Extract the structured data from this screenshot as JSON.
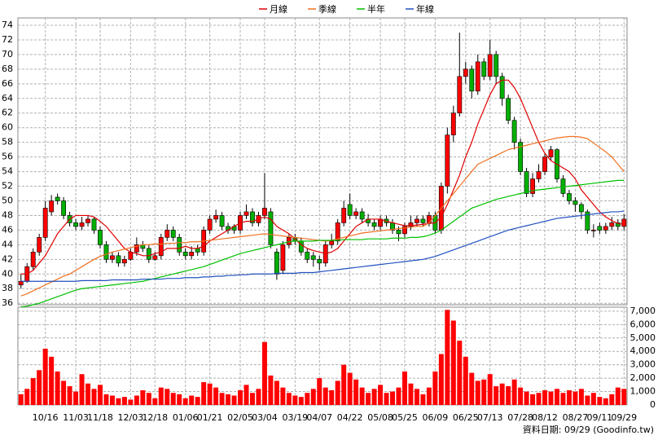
{
  "chart_data": {
    "type": "candlestick",
    "categories": [
      null,
      null,
      null,
      null,
      "10/16",
      null,
      null,
      null,
      null,
      "11/03",
      null,
      null,
      null,
      "11/18",
      null,
      null,
      null,
      null,
      "12/03",
      null,
      null,
      null,
      "12/18",
      null,
      null,
      null,
      null,
      "01/06",
      null,
      null,
      null,
      "01/21",
      null,
      null,
      null,
      null,
      "02/05",
      null,
      null,
      null,
      "03/04",
      null,
      null,
      null,
      null,
      "03/19",
      null,
      null,
      null,
      "04/07",
      null,
      null,
      null,
      null,
      "04/22",
      null,
      null,
      null,
      null,
      "05/08",
      null,
      null,
      null,
      "05/25",
      null,
      null,
      null,
      null,
      "06/09",
      null,
      null,
      null,
      null,
      "06/25",
      null,
      null,
      null,
      "07/13",
      null,
      null,
      null,
      null,
      "07/28",
      null,
      null,
      null,
      "08/12",
      null,
      null,
      null,
      null,
      "08/27",
      null,
      null,
      null,
      "09/11",
      null,
      null,
      null,
      "09/29"
    ],
    "open": [
      38.5,
      39,
      41,
      43,
      45,
      48.5,
      50.5,
      50,
      48,
      47,
      46.5,
      47,
      47.5,
      46,
      44,
      42,
      42.5,
      41.5,
      42,
      43,
      44,
      43.5,
      42,
      42.5,
      45,
      46,
      45,
      43,
      42.5,
      43.5,
      43,
      46,
      47.5,
      48,
      46.5,
      46.5,
      46,
      48,
      48.5,
      47,
      48,
      48.5,
      43,
      40.5,
      44,
      45,
      44.5,
      43,
      42.5,
      42,
      41.5,
      44,
      44.5,
      47,
      49.5,
      48,
      48.5,
      47.5,
      47,
      46.5,
      47.5,
      47,
      46,
      45.5,
      46.5,
      47,
      47.5,
      47,
      48,
      46,
      52,
      59,
      62,
      67,
      68,
      65,
      69,
      67,
      70,
      67,
      64,
      61,
      58,
      54,
      51,
      53,
      54,
      56,
      57,
      53,
      51,
      50,
      49.5,
      48.5,
      46,
      46.5,
      46,
      46.5,
      47,
      46.5
    ],
    "high": [
      40,
      41.5,
      43.5,
      45.5,
      50,
      50.8,
      51,
      50.5,
      48.5,
      47.5,
      47.8,
      48,
      47.8,
      46.5,
      44.5,
      43,
      43,
      42.5,
      43.5,
      45,
      44.5,
      44,
      43,
      45.5,
      46.8,
      46.5,
      45.5,
      43.5,
      43.8,
      44,
      46.5,
      48,
      48.8,
      48.5,
      47,
      46.8,
      48.5,
      49.5,
      49,
      48.5,
      53.8,
      49,
      43.5,
      44.5,
      45.5,
      45.5,
      45,
      43.5,
      43,
      42.5,
      44.5,
      45.5,
      47.5,
      50,
      51,
      49,
      49,
      48.2,
      47.5,
      48,
      48,
      47.5,
      46.5,
      47,
      48,
      48,
      48,
      48.5,
      48.5,
      52.5,
      60,
      63,
      73,
      69,
      68.5,
      70,
      69.5,
      72,
      70.5,
      67.5,
      64.5,
      61.5,
      58.5,
      54.5,
      53.8,
      55,
      56.5,
      57.5,
      57.2,
      53.5,
      51.5,
      50.5,
      49.8,
      48.8,
      46.8,
      47,
      47,
      47.8,
      47.5,
      48.2
    ],
    "low": [
      38,
      38.8,
      40.5,
      42.5,
      44.5,
      48,
      49.5,
      47.5,
      46.5,
      46,
      46,
      46.5,
      45.5,
      43.5,
      41.5,
      41.5,
      41,
      41,
      41.8,
      42.5,
      43,
      41.5,
      41.8,
      42,
      44.5,
      44.5,
      42.5,
      42,
      42,
      42.5,
      42.5,
      45.5,
      47,
      46,
      45.5,
      45.5,
      45.5,
      47.5,
      46.5,
      46.5,
      47.5,
      43.5,
      39.2,
      40,
      43.5,
      44,
      42.5,
      41.5,
      41,
      40.5,
      41,
      43.5,
      44,
      46.5,
      47.5,
      47.5,
      47,
      46.5,
      46,
      46,
      46.5,
      45.5,
      44.5,
      45,
      46,
      46.5,
      46.5,
      46.5,
      45.5,
      45.5,
      51,
      58,
      61.5,
      66,
      64,
      64.5,
      66.5,
      66.5,
      66,
      63,
      60.5,
      57,
      53.5,
      50.5,
      50.5,
      52.5,
      53.5,
      55.5,
      52.5,
      50.5,
      49.5,
      48.5,
      47.5,
      45.5,
      45,
      45.5,
      45.5,
      46,
      46,
      46
    ],
    "close": [
      39,
      41,
      43,
      45,
      49,
      50,
      50,
      48,
      47,
      46.5,
      47,
      47.5,
      46,
      44,
      42,
      42.5,
      41.5,
      42,
      43,
      44,
      43.5,
      42,
      42.5,
      45,
      46,
      45,
      43,
      42.5,
      43,
      43,
      46,
      47.5,
      48,
      46.5,
      46,
      46,
      48,
      48.5,
      47,
      48,
      49,
      44,
      40,
      44,
      45,
      44.5,
      43,
      42,
      42,
      41.5,
      44,
      44.5,
      47,
      49,
      48,
      48.5,
      47.5,
      47,
      46.5,
      47.5,
      47,
      46,
      45.5,
      46.5,
      47,
      47.5,
      47,
      48,
      46,
      52,
      59,
      62,
      67,
      68,
      65,
      69,
      67,
      70,
      67,
      64,
      61,
      58,
      54,
      51,
      53,
      54,
      56,
      57,
      53,
      51,
      50,
      49.5,
      48.5,
      46,
      46,
      46,
      46.5,
      47,
      46.5,
      47.5
    ],
    "up_color": "#ff0000",
    "down_color": "#00b000",
    "ylim": [
      35.8,
      75
    ],
    "yticks": [
      36,
      38,
      40,
      42,
      44,
      46,
      48,
      50,
      52,
      54,
      56,
      58,
      60,
      62,
      64,
      66,
      68,
      70,
      72,
      74
    ],
    "grid": true,
    "series": [
      {
        "name": "月線",
        "color": "#e00000",
        "values": [
          40,
          40,
          40.5,
          41.5,
          42.5,
          44,
          45.5,
          46.5,
          47.5,
          48,
          48,
          48,
          47.8,
          47.2,
          46.5,
          45.5,
          44.5,
          43.5,
          43,
          42.8,
          42.5,
          42.5,
          42.8,
          43,
          43.5,
          43.5,
          43.5,
          43.8,
          43.5,
          43.5,
          43.8,
          44.5,
          45,
          45.5,
          46,
          46.5,
          47,
          47.2,
          47.2,
          47.5,
          47.8,
          47.5,
          46.5,
          46,
          45.5,
          44.8,
          44,
          43.5,
          43.2,
          43,
          42.8,
          43,
          43.5,
          44.5,
          45.5,
          46.5,
          47,
          47.5,
          47.5,
          47.5,
          47.2,
          47,
          46.8,
          46.6,
          46.6,
          46.7,
          46.8,
          46.9,
          47,
          47.8,
          49.5,
          51.5,
          53.5,
          56,
          58,
          60.5,
          62.5,
          64.5,
          66,
          66.5,
          66.5,
          65.5,
          64,
          62,
          60,
          58,
          56.5,
          55.5,
          55,
          54.5,
          54,
          53,
          51.5,
          50.5,
          49.5,
          48.5,
          47.8,
          47.3,
          46.9,
          46.8
        ]
      },
      {
        "name": "季線",
        "color": "#f07020",
        "values": [
          37,
          37.3,
          37.7,
          38.1,
          38.5,
          38.9,
          39.3,
          39.7,
          40,
          40.5,
          41,
          41.5,
          42,
          42.4,
          42.7,
          43,
          43.2,
          43.4,
          43.6,
          43.8,
          44,
          44,
          44.1,
          44.1,
          44.2,
          44.2,
          44.3,
          44.3,
          44.4,
          44.4,
          44.5,
          44.6,
          44.7,
          44.8,
          44.9,
          45,
          45.1,
          45.2,
          45.3,
          45.4,
          45.5,
          45.4,
          45.3,
          45.2,
          45.1,
          45,
          44.9,
          44.8,
          44.7,
          44.6,
          44.5,
          44.6,
          44.8,
          45,
          45.2,
          45.4,
          45.6,
          45.7,
          45.8,
          45.9,
          46,
          46.1,
          46.2,
          46.3,
          46.4,
          46.5,
          46.5,
          47,
          48,
          49,
          50,
          51,
          52,
          53,
          54,
          55,
          55.4,
          55.8,
          56.2,
          56.6,
          57,
          57.2,
          57.4,
          57.6,
          57.8,
          58,
          58.2,
          58.4,
          58.6,
          58.7,
          58.8,
          58.8,
          58.7,
          58.5,
          57.9,
          57.3,
          56.7,
          56,
          55,
          54
        ]
      },
      {
        "name": "半年",
        "color": "#00c000",
        "values": [
          35.5,
          35.6,
          35.8,
          36,
          36.3,
          36.6,
          36.9,
          37.2,
          37.5,
          37.8,
          38,
          38.1,
          38.2,
          38.3,
          38.4,
          38.5,
          38.6,
          38.7,
          38.8,
          38.9,
          39,
          39.2,
          39.4,
          39.6,
          39.8,
          40,
          40.2,
          40.4,
          40.6,
          40.8,
          41,
          41.3,
          41.6,
          41.9,
          42.2,
          42.5,
          42.8,
          43,
          43.2,
          43.4,
          43.6,
          43.8,
          44,
          44.2,
          44.4,
          44.5,
          44.5,
          44.5,
          44.5,
          44.6,
          44.6,
          44.6,
          44.6,
          44.7,
          44.7,
          44.7,
          44.7,
          44.8,
          44.8,
          44.8,
          44.8,
          44.9,
          44.9,
          44.9,
          45,
          45,
          45.1,
          45.3,
          45.6,
          46,
          46.6,
          47.2,
          47.8,
          48.4,
          49,
          49.3,
          49.6,
          49.9,
          50.2,
          50.4,
          50.6,
          50.8,
          51,
          51.2,
          51.4,
          51.5,
          51.6,
          51.7,
          51.8,
          51.9,
          52,
          52.1,
          52.2,
          52.3,
          52.4,
          52.5,
          52.6,
          52.7,
          52.8,
          52.8
        ]
      },
      {
        "name": "年線",
        "color": "#2050c0",
        "values": [
          39,
          39,
          39,
          39,
          39,
          39,
          39,
          39,
          39,
          39,
          39.1,
          39.1,
          39.1,
          39.1,
          39.1,
          39.2,
          39.2,
          39.2,
          39.2,
          39.2,
          39.3,
          39.3,
          39.3,
          39.3,
          39.4,
          39.4,
          39.4,
          39.5,
          39.5,
          39.5,
          39.6,
          39.6,
          39.7,
          39.7,
          39.8,
          39.8,
          39.9,
          39.9,
          40,
          40,
          40,
          40,
          40.1,
          40.1,
          40.1,
          40.1,
          40.2,
          40.2,
          40.2,
          40.3,
          40.4,
          40.5,
          40.6,
          40.7,
          40.8,
          40.9,
          41,
          41.1,
          41.2,
          41.3,
          41.4,
          41.5,
          41.6,
          41.7,
          41.8,
          41.9,
          42,
          42.2,
          42.4,
          42.7,
          43,
          43.3,
          43.6,
          43.9,
          44.2,
          44.5,
          44.8,
          45.1,
          45.4,
          45.7,
          46,
          46.2,
          46.4,
          46.6,
          46.8,
          47,
          47.2,
          47.4,
          47.6,
          47.7,
          47.8,
          47.9,
          48,
          48.1,
          48.2,
          48.3,
          48.4,
          48.5,
          48.5,
          48.6
        ]
      }
    ],
    "volume": {
      "type": "bar",
      "color": "#ff0000",
      "ylim": [
        0,
        7300
      ],
      "yticks": [
        0,
        {
          "value": 1000,
          "label": "1,000"
        },
        {
          "value": 2000,
          "label": "2,000"
        },
        {
          "value": 3000,
          "label": "3,000"
        },
        {
          "value": 4000,
          "label": "4,000"
        },
        {
          "value": 5000,
          "label": "5,000"
        },
        {
          "value": 6000,
          "label": "6,000"
        },
        {
          "value": 7000,
          "label": "7,000"
        }
      ],
      "values": [
        800,
        1200,
        2000,
        2600,
        4200,
        3600,
        2500,
        1800,
        1400,
        1000,
        2300,
        1600,
        1200,
        1500,
        800,
        700,
        500,
        600,
        400,
        700,
        1100,
        900,
        500,
        1300,
        1200,
        900,
        800,
        500,
        700,
        600,
        1700,
        1600,
        1300,
        900,
        800,
        700,
        1100,
        1500,
        900,
        1200,
        4700,
        2200,
        1800,
        1300,
        900,
        700,
        600,
        900,
        1200,
        2000,
        1300,
        1100,
        1800,
        3000,
        2400,
        1900,
        1300,
        900,
        1200,
        1500,
        900,
        1000,
        1300,
        2500,
        1600,
        1200,
        800,
        1300,
        2500,
        3800,
        7100,
        6300,
        4800,
        3600,
        2400,
        1800,
        1900,
        2300,
        1400,
        1600,
        1400,
        1900,
        1300,
        1000,
        800,
        900,
        1100,
        1000,
        1200,
        900,
        1100,
        1000,
        1200,
        700,
        900,
        600,
        500,
        800,
        1300,
        1200
      ]
    },
    "source": "資料日期: 09/29 (Goodinfo.tw)"
  }
}
